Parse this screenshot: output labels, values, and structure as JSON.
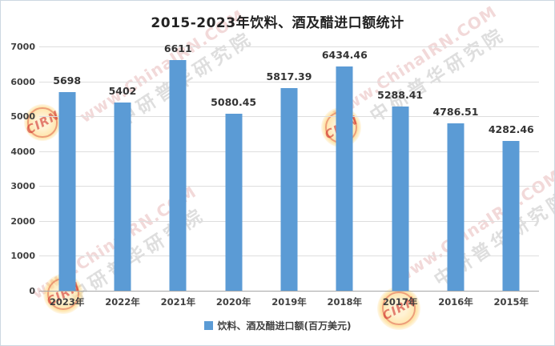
{
  "title": "2015-2023年饮料、酒及醋进口额统计",
  "chart_data": {
    "type": "bar",
    "title": "2015-2023年饮料、酒及醋进口额统计",
    "categories": [
      "2023年",
      "2022年",
      "2021年",
      "2020年",
      "2019年",
      "2018年",
      "2017年",
      "2016年",
      "2015年"
    ],
    "values": [
      5698,
      5402,
      6611,
      5080.45,
      5817.39,
      6434.46,
      5288.41,
      4786.51,
      4282.46
    ],
    "value_labels": [
      "5698",
      "5402",
      "6611",
      "5080.45",
      "5817.39",
      "6434.46",
      "5288.41",
      "4786.51",
      "4282.46"
    ],
    "xlabel": "",
    "ylabel": "",
    "ylim": [
      0,
      7000
    ],
    "yticks": [
      0,
      1000,
      2000,
      3000,
      4000,
      5000,
      6000,
      7000
    ],
    "grid": true,
    "bar_color": "#5B9BD5",
    "legend": [
      "饮料、酒及醋进口额(百万美元)"
    ],
    "legend_position": "bottom"
  },
  "legend": {
    "label": "饮料、酒及醋进口额(百万美元)",
    "marker_color": "#5B9BD5"
  },
  "watermark": {
    "url_text": "www.ChinaIRN.COM",
    "cn_text": "中研普华研究院",
    "stamp_text": "CIRN"
  }
}
